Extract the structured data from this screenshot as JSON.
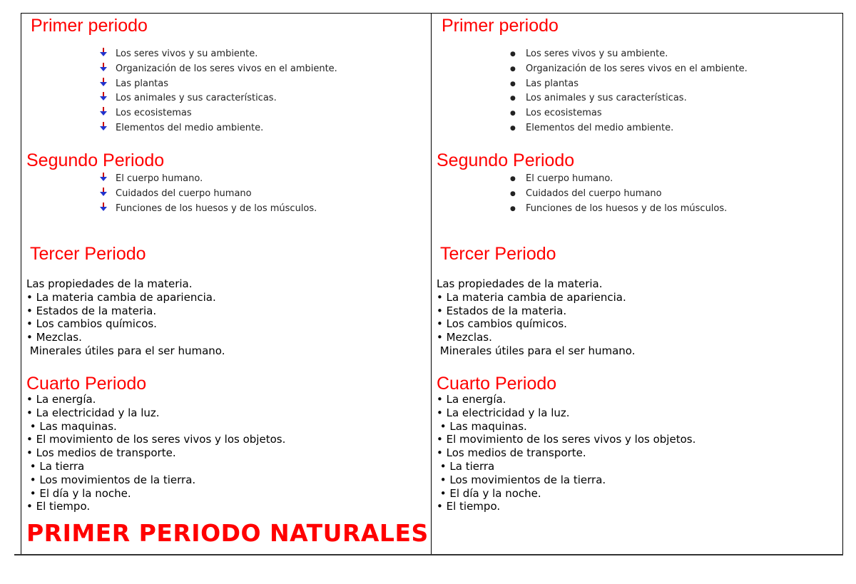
{
  "columns": [
    {
      "bullet_icon": "arrow-down-icon",
      "primer": {
        "title": "Primer periodo",
        "items": [
          "Los seres vivos y su ambiente.",
          "Organización de los seres vivos en el ambiente.",
          "Las plantas",
          "Los animales y sus características.",
          "Los ecosistemas",
          "Elementos del medio ambiente."
        ]
      },
      "segundo": {
        "title": "Segundo Periodo",
        "items": [
          "El cuerpo humano.",
          "Cuidados del cuerpo humano",
          "Funciones de los huesos y de los músculos."
        ]
      },
      "tercer": {
        "title": "Tercer Periodo",
        "lines": [
          "Las propiedades de la materia.",
          "• La materia cambia de apariencia.",
          "• Estados de la materia.",
          "• Los cambios químicos.",
          "• Mezclas.",
          " Minerales útiles para el ser humano."
        ]
      },
      "cuarto": {
        "title": "Cuarto Periodo",
        "lines": [
          "• La energía.",
          "• La electricidad y la luz.",
          " • Las maquinas.",
          "• El movimiento de los seres vivos y los objetos.",
          "• Los medios de transporte.",
          " • La tierra",
          " • Los movimientos de la tierra.",
          " • El día y la noche.",
          "• El tiempo."
        ]
      }
    },
    {
      "bullet_icon": "bullet-dot-icon",
      "primer": {
        "title": "Primer periodo",
        "items": [
          "Los seres vivos y su ambiente.",
          "Organización de los seres vivos en el ambiente.",
          "Las plantas",
          "Los animales y sus características.",
          "Los ecosistemas",
          "Elementos del medio ambiente."
        ]
      },
      "segundo": {
        "title": "Segundo Periodo",
        "items": [
          "El cuerpo humano.",
          "Cuidados del cuerpo humano",
          "Funciones de los huesos y de los músculos."
        ]
      },
      "tercer": {
        "title": "Tercer Periodo",
        "lines": [
          "Las propiedades de la materia.",
          "• La materia cambia de apariencia.",
          "• Estados de la materia.",
          "• Los cambios químicos.",
          "• Mezclas.",
          " Minerales útiles para el ser humano."
        ]
      },
      "cuarto": {
        "title": "Cuarto Periodo",
        "lines": [
          "• La energía.",
          "• La electricidad y la luz.",
          " • Las maquinas.",
          "• El movimiento de los seres vivos y los objetos.",
          "• Los medios de transporte.",
          " • La tierra",
          " • Los movimientos de la tierra.",
          " • El día y la noche.",
          "• El tiempo."
        ]
      }
    }
  ],
  "footer_title": "PRIMER PERIODO NATURALES",
  "colors": {
    "heading": "#ff0000",
    "text": "#000000"
  }
}
